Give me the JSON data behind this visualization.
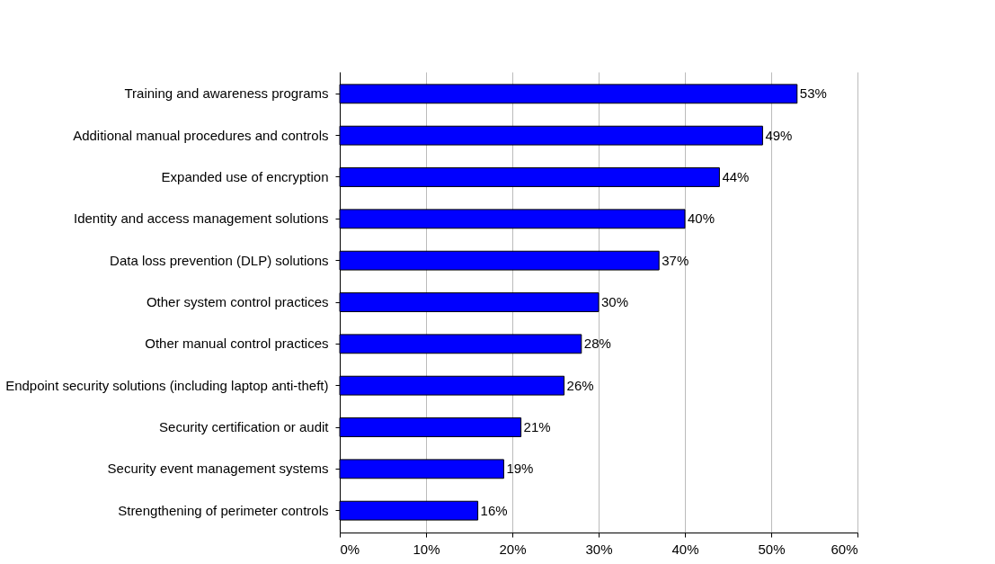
{
  "chart_data": {
    "type": "bar",
    "orientation": "horizontal",
    "categories": [
      "Training and awareness programs",
      "Additional manual procedures and controls",
      "Expanded use of encryption",
      "Identity and access management solutions",
      "Data loss prevention (DLP) solutions",
      "Other system control practices",
      "Other manual control practices",
      "Endpoint security solutions (including laptop anti-theft)",
      "Security certification or audit",
      "Security event management systems",
      "Strengthening of perimeter controls"
    ],
    "values": [
      53,
      49,
      44,
      40,
      37,
      30,
      28,
      26,
      21,
      19,
      16
    ],
    "value_labels": [
      "53%",
      "49%",
      "44%",
      "40%",
      "37%",
      "30%",
      "28%",
      "26%",
      "21%",
      "19%",
      "16%"
    ],
    "color": "#0000ff",
    "xlim": [
      0,
      60
    ],
    "xticks": [
      {
        "value": 0,
        "label": "0%"
      },
      {
        "value": 10,
        "label": "10%"
      },
      {
        "value": 20,
        "label": "20%"
      },
      {
        "value": 30,
        "label": "30%"
      },
      {
        "value": 40,
        "label": "40%"
      },
      {
        "value": 50,
        "label": "50%"
      },
      {
        "value": 60,
        "label": "60%"
      }
    ],
    "grid": "x"
  }
}
